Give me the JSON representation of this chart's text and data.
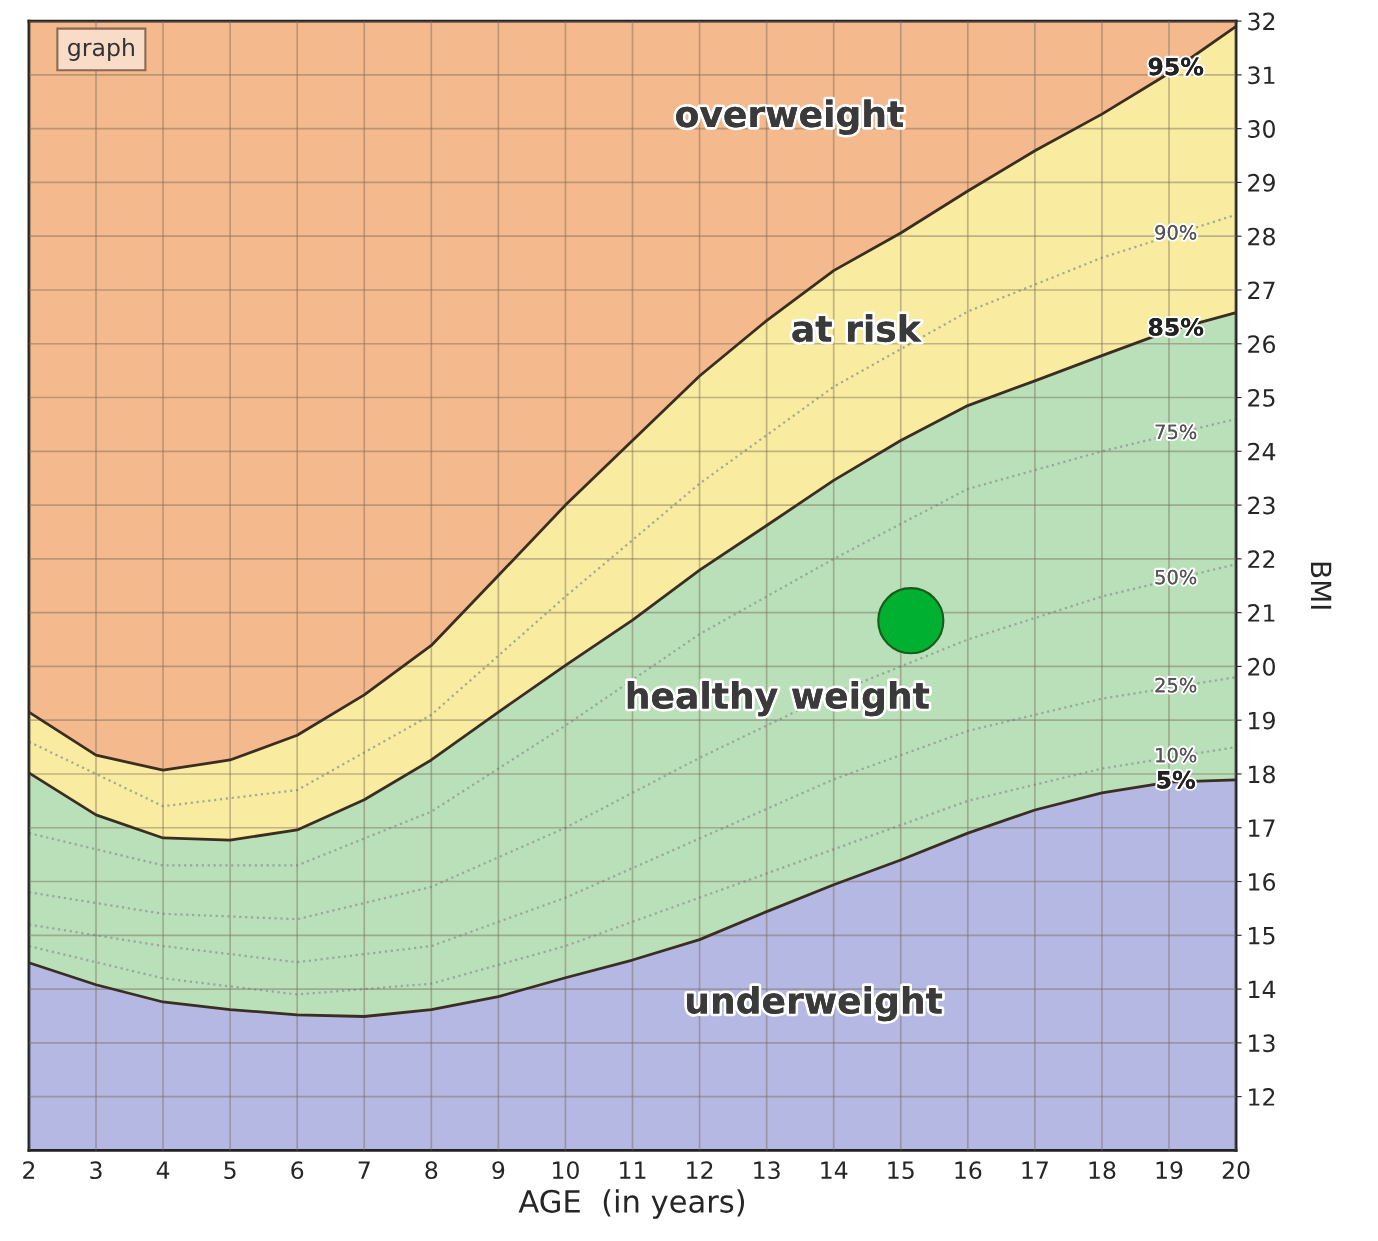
{
  "chart_data": {
    "type": "line",
    "xlabel": "AGE  (in years)",
    "ylabel": "BMI",
    "xlim": [
      2,
      20
    ],
    "ylim": [
      11,
      32
    ],
    "xticks": [
      2,
      3,
      4,
      5,
      6,
      7,
      8,
      9,
      10,
      11,
      12,
      13,
      14,
      15,
      16,
      17,
      18,
      19,
      20
    ],
    "yticks": [
      12,
      13,
      14,
      15,
      16,
      17,
      18,
      19,
      20,
      21,
      22,
      23,
      24,
      25,
      26,
      27,
      28,
      29,
      30,
      31,
      32
    ],
    "grid": true,
    "legend": false,
    "series": [
      {
        "name": "95%",
        "type": "area",
        "color": "#f9eca0",
        "x": [
          2,
          3,
          4,
          5,
          6,
          7,
          8,
          9,
          10,
          11,
          12,
          13,
          14,
          15,
          16,
          17,
          18,
          19,
          20
        ],
        "values": [
          19.15,
          18.35,
          18.07,
          18.26,
          18.72,
          19.47,
          20.39,
          21.69,
          23.0,
          24.2,
          25.4,
          26.43,
          27.36,
          28.06,
          28.84,
          29.59,
          30.27,
          31.03,
          31.9
        ]
      },
      {
        "name": "90%",
        "line_style": "dotted",
        "color": "#a8a890",
        "x": [
          2,
          4,
          6,
          8,
          10,
          12,
          14,
          16,
          18,
          20
        ],
        "values": [
          18.6,
          17.4,
          17.7,
          19.1,
          21.3,
          23.4,
          25.2,
          26.6,
          27.6,
          28.4
        ]
      },
      {
        "name": "85%",
        "type": "area",
        "color": "#b9e0b8",
        "x": [
          2,
          3,
          4,
          5,
          6,
          7,
          8,
          9,
          10,
          11,
          12,
          13,
          14,
          15,
          16,
          17,
          18,
          19,
          20
        ],
        "values": [
          18.02,
          17.24,
          16.81,
          16.77,
          16.96,
          17.52,
          18.26,
          19.15,
          20.02,
          20.86,
          21.79,
          22.62,
          23.46,
          24.2,
          24.85,
          25.31,
          25.78,
          26.24,
          26.58
        ]
      },
      {
        "name": "75%",
        "line_style": "dotted",
        "color": "#98a898",
        "x": [
          2,
          4,
          6,
          8,
          10,
          12,
          14,
          16,
          18,
          20
        ],
        "values": [
          16.9,
          16.3,
          16.3,
          17.3,
          18.9,
          20.6,
          22.0,
          23.3,
          24.0,
          24.6
        ]
      },
      {
        "name": "50%",
        "line_style": "dotted",
        "color": "#98a898",
        "x": [
          2,
          4,
          6,
          8,
          10,
          12,
          14,
          16,
          18,
          20
        ],
        "values": [
          15.8,
          15.4,
          15.3,
          15.9,
          17.0,
          18.3,
          19.5,
          20.5,
          21.3,
          21.9
        ]
      },
      {
        "name": "25%",
        "line_style": "dotted",
        "color": "#98a898",
        "x": [
          2,
          4,
          6,
          8,
          10,
          12,
          14,
          16,
          18,
          20
        ],
        "values": [
          15.2,
          14.8,
          14.5,
          14.8,
          15.7,
          16.8,
          17.9,
          18.8,
          19.4,
          19.8
        ]
      },
      {
        "name": "10%",
        "line_style": "dotted",
        "color": "#98a898",
        "x": [
          2,
          4,
          6,
          8,
          10,
          12,
          14,
          16,
          18,
          20
        ],
        "values": [
          14.8,
          14.2,
          13.9,
          14.1,
          14.8,
          15.7,
          16.6,
          17.5,
          18.1,
          18.5
        ]
      },
      {
        "name": "5%",
        "type": "area",
        "color": "#b4b8e2",
        "x": [
          2,
          3,
          4,
          5,
          6,
          7,
          8,
          9,
          10,
          11,
          12,
          13,
          14,
          15,
          16,
          17,
          18,
          19,
          20
        ],
        "values": [
          14.49,
          14.08,
          13.76,
          13.62,
          13.52,
          13.49,
          13.62,
          13.86,
          14.21,
          14.54,
          14.92,
          15.44,
          15.94,
          16.4,
          16.9,
          17.33,
          17.65,
          17.85,
          17.89
        ]
      },
      {
        "type": "scatter",
        "marker": "circle",
        "color": "#00b030",
        "x": [
          15.15
        ],
        "values": [
          20.85
        ]
      }
    ],
    "annotations": [
      "graph",
      "overweight",
      "at risk",
      "healthy weight",
      "underweight"
    ]
  }
}
